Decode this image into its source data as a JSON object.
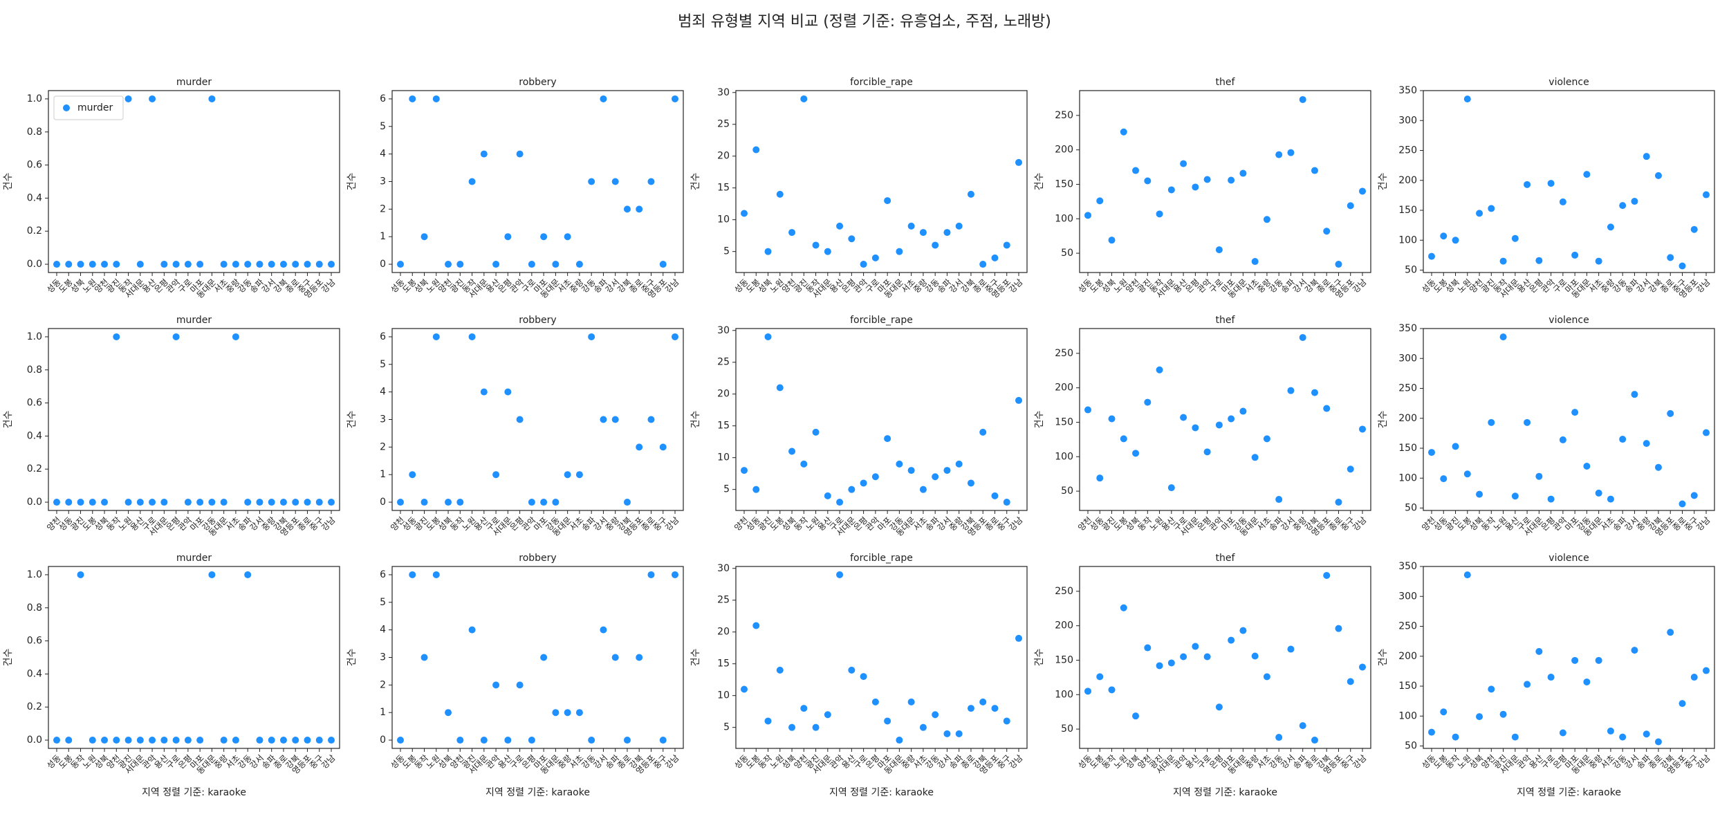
{
  "title": "범죄 유형별 지역 비교 (정렬 기준: 유흥업소, 주점, 노래방)",
  "chart_data": [
    {
      "type": "scatter",
      "title": "murder",
      "ylabel": "건수",
      "legend": "upper left",
      "categories": [
        "성동",
        "도봉",
        "성북",
        "노원",
        "양천",
        "광진",
        "동작",
        "서대문",
        "용산",
        "은평",
        "관악",
        "구로",
        "마포",
        "동대문",
        "서초",
        "중랑",
        "강동",
        "송파",
        "강서",
        "강북",
        "종로",
        "중구",
        "영등포",
        "강남"
      ],
      "series": [
        {
          "name": "murder",
          "color": "#1e90ff",
          "values": [
            0,
            0,
            0,
            0,
            0,
            0,
            1,
            0,
            1,
            0,
            0,
            0,
            0,
            1,
            0,
            0,
            0,
            0,
            0,
            0,
            0,
            0,
            0,
            0
          ]
        }
      ],
      "ylim": [
        -0.05,
        1.05
      ],
      "yticks": [
        {
          "value": 0,
          "label": "0.0"
        },
        0.2,
        0.4,
        0.6,
        0.8,
        {
          "value": 1,
          "label": "1.0"
        }
      ]
    },
    {
      "type": "scatter",
      "title": "robbery",
      "ylabel": "건수",
      "color": "#1e90ff",
      "categories": [
        "성동",
        "도봉",
        "성북",
        "노원",
        "양천",
        "광진",
        "동작",
        "서대문",
        "용산",
        "은평",
        "관악",
        "구로",
        "마포",
        "동대문",
        "서초",
        "중랑",
        "강동",
        "송파",
        "강서",
        "강북",
        "종로",
        "중구",
        "영등포",
        "강남"
      ],
      "values": [
        0,
        6,
        1,
        6,
        0,
        0,
        3,
        4,
        0,
        1,
        4,
        0,
        1,
        0,
        1,
        0,
        3,
        6,
        3,
        2,
        2,
        3,
        0,
        6
      ],
      "ylim": [
        -0.3,
        6.3
      ],
      "yticks": [
        0,
        1,
        2,
        3,
        4,
        5,
        6
      ]
    },
    {
      "type": "scatter",
      "title": "forcible_rape",
      "ylabel": "건수",
      "color": "#1e90ff",
      "categories": [
        "성동",
        "도봉",
        "성북",
        "노원",
        "양천",
        "광진",
        "동작",
        "서대문",
        "용산",
        "은평",
        "관악",
        "구로",
        "마포",
        "동대문",
        "서초",
        "중랑",
        "강동",
        "송파",
        "강서",
        "강북",
        "종로",
        "중구",
        "영등포",
        "강남"
      ],
      "values": [
        11,
        21,
        5,
        14,
        8,
        29,
        6,
        5,
        9,
        7,
        3,
        4,
        13,
        5,
        9,
        8,
        6,
        8,
        9,
        14,
        3,
        4,
        6,
        19
      ],
      "ylim": [
        1.7,
        30.3
      ],
      "yticks": [
        5,
        10,
        15,
        20,
        25,
        30
      ]
    },
    {
      "type": "scatter",
      "title": "thef",
      "ylabel": "건수",
      "color": "#1e90ff",
      "categories": [
        "성동",
        "도봉",
        "성북",
        "노원",
        "양천",
        "광진",
        "동작",
        "서대문",
        "용산",
        "은평",
        "관악",
        "구로",
        "마포",
        "동대문",
        "서초",
        "중랑",
        "강동",
        "송파",
        "강서",
        "강북",
        "종로",
        "중구",
        "영등포",
        "강남"
      ],
      "values": [
        105,
        126,
        69,
        226,
        170,
        155,
        107,
        142,
        180,
        146,
        157,
        55,
        156,
        166,
        38,
        99,
        193,
        196,
        273,
        170,
        82,
        34,
        119,
        140
      ],
      "ylim": [
        22,
        286
      ],
      "yticks": [
        50,
        100,
        150,
        200,
        250
      ]
    },
    {
      "type": "scatter",
      "title": "violence",
      "ylabel": "건수",
      "color": "#1e90ff",
      "categories": [
        "성동",
        "도봉",
        "성북",
        "노원",
        "양천",
        "광진",
        "동작",
        "서대문",
        "용산",
        "은평",
        "관악",
        "구로",
        "마포",
        "동대문",
        "서초",
        "중랑",
        "강동",
        "송파",
        "강서",
        "강북",
        "종로",
        "중구",
        "영등포",
        "강남"
      ],
      "values": [
        73,
        107,
        100,
        336,
        145,
        153,
        65,
        103,
        193,
        66,
        195,
        164,
        75,
        210,
        65,
        122,
        158,
        165,
        240,
        208,
        71,
        57,
        118,
        176
      ],
      "ylim": [
        46,
        350
      ],
      "yticks": [
        50,
        100,
        150,
        200,
        250,
        300,
        350
      ]
    },
    {
      "type": "scatter",
      "title": "murder",
      "ylabel": "건수",
      "color": "#1e90ff",
      "categories": [
        "양천",
        "성동",
        "광진",
        "도봉",
        "성북",
        "동작",
        "노원",
        "용산",
        "구로",
        "서대문",
        "은평",
        "관악",
        "마포",
        "강동",
        "동대문",
        "서초",
        "송파",
        "강서",
        "중랑",
        "강북",
        "영등포",
        "종로",
        "중구",
        "강남"
      ],
      "values": [
        0,
        0,
        0,
        0,
        0,
        1,
        0,
        0,
        0,
        0,
        1,
        0,
        0,
        0,
        0,
        1,
        0,
        0,
        0,
        0,
        0,
        0,
        0,
        0
      ],
      "ylim": [
        -0.05,
        1.05
      ],
      "yticks": [
        {
          "value": 0,
          "label": "0.0"
        },
        0.2,
        0.4,
        0.6,
        0.8,
        {
          "value": 1,
          "label": "1.0"
        }
      ]
    },
    {
      "type": "scatter",
      "title": "robbery",
      "ylabel": "건수",
      "color": "#1e90ff",
      "categories": [
        "양천",
        "성동",
        "광진",
        "도봉",
        "성북",
        "동작",
        "노원",
        "용산",
        "구로",
        "서대문",
        "은평",
        "관악",
        "마포",
        "강동",
        "동대문",
        "서초",
        "송파",
        "강서",
        "중랑",
        "강북",
        "영등포",
        "종로",
        "중구",
        "강남"
      ],
      "values": [
        0,
        1,
        0,
        6,
        0,
        0,
        6,
        4,
        1,
        4,
        3,
        0,
        0,
        0,
        1,
        1,
        6,
        3,
        3,
        0,
        2,
        3,
        2,
        6
      ],
      "ylim": [
        -0.3,
        6.3
      ],
      "yticks": [
        0,
        1,
        2,
        3,
        4,
        5,
        6
      ]
    },
    {
      "type": "scatter",
      "title": "forcible_rape",
      "ylabel": "건수",
      "color": "#1e90ff",
      "categories": [
        "양천",
        "성동",
        "광진",
        "도봉",
        "성북",
        "동작",
        "노원",
        "용산",
        "구로",
        "서대문",
        "은평",
        "관악",
        "마포",
        "강동",
        "동대문",
        "서초",
        "송파",
        "강서",
        "중랑",
        "강북",
        "영등포",
        "종로",
        "중구",
        "강남"
      ],
      "values": [
        8,
        5,
        29,
        21,
        11,
        9,
        14,
        4,
        3,
        5,
        6,
        7,
        13,
        9,
        8,
        5,
        7,
        8,
        9,
        6,
        14,
        4,
        3,
        19
      ],
      "ylim": [
        1.7,
        30.3
      ],
      "yticks": [
        5,
        10,
        15,
        20,
        25,
        30
      ]
    },
    {
      "type": "scatter",
      "title": "thef",
      "ylabel": "건수",
      "color": "#1e90ff",
      "categories": [
        "양천",
        "성동",
        "광진",
        "도봉",
        "성북",
        "동작",
        "노원",
        "용산",
        "구로",
        "서대문",
        "은평",
        "관악",
        "마포",
        "강동",
        "동대문",
        "서초",
        "송파",
        "강서",
        "중랑",
        "강북",
        "영등포",
        "종로",
        "중구",
        "강남"
      ],
      "values": [
        168,
        69,
        155,
        126,
        105,
        179,
        226,
        55,
        157,
        142,
        107,
        146,
        155,
        166,
        99,
        126,
        38,
        196,
        273,
        193,
        170,
        34,
        82,
        140
      ],
      "ylim": [
        22,
        286
      ],
      "yticks": [
        50,
        100,
        150,
        200,
        250
      ]
    },
    {
      "type": "scatter",
      "title": "violence",
      "ylabel": "건수",
      "color": "#1e90ff",
      "categories": [
        "양천",
        "성동",
        "광진",
        "도봉",
        "성북",
        "동작",
        "노원",
        "용산",
        "구로",
        "서대문",
        "은평",
        "관악",
        "마포",
        "강동",
        "동대문",
        "서초",
        "송파",
        "강서",
        "중랑",
        "강북",
        "영등포",
        "종로",
        "중구",
        "강남"
      ],
      "values": [
        143,
        99,
        153,
        107,
        73,
        193,
        336,
        70,
        193,
        103,
        65,
        164,
        210,
        120,
        75,
        65,
        165,
        240,
        158,
        118,
        208,
        57,
        71,
        176
      ],
      "ylim": [
        46,
        350
      ],
      "yticks": [
        50,
        100,
        150,
        200,
        250,
        300,
        350
      ]
    },
    {
      "type": "scatter",
      "title": "murder",
      "ylabel": "건수",
      "xlabel": "지역 정렬 기준: karaoke",
      "color": "#1e90ff",
      "categories": [
        "성동",
        "도봉",
        "동작",
        "노원",
        "성북",
        "양천",
        "광진",
        "서대문",
        "관악",
        "용산",
        "구로",
        "은평",
        "마포",
        "동대문",
        "중랑",
        "서초",
        "강동",
        "강서",
        "송파",
        "종로",
        "강북",
        "영등포",
        "중구",
        "강남"
      ],
      "values": [
        0,
        0,
        1,
        0,
        0,
        0,
        0,
        0,
        0,
        0,
        0,
        0,
        0,
        1,
        0,
        0,
        1,
        0,
        0,
        0,
        0,
        0,
        0,
        0
      ],
      "ylim": [
        -0.05,
        1.05
      ],
      "yticks": [
        {
          "value": 0,
          "label": "0.0"
        },
        0.2,
        0.4,
        0.6,
        0.8,
        {
          "value": 1,
          "label": "1.0"
        }
      ]
    },
    {
      "type": "scatter",
      "title": "robbery",
      "ylabel": "건수",
      "xlabel": "지역 정렬 기준: karaoke",
      "color": "#1e90ff",
      "categories": [
        "성동",
        "도봉",
        "동작",
        "노원",
        "성북",
        "양천",
        "광진",
        "서대문",
        "관악",
        "용산",
        "구로",
        "은평",
        "마포",
        "동대문",
        "중랑",
        "서초",
        "강동",
        "강서",
        "송파",
        "종로",
        "강북",
        "영등포",
        "중구",
        "강남"
      ],
      "values": [
        0,
        6,
        3,
        6,
        1,
        0,
        4,
        0,
        2,
        0,
        2,
        0,
        3,
        1,
        1,
        1,
        0,
        4,
        3,
        0,
        3,
        6,
        0,
        6
      ],
      "ylim": [
        -0.3,
        6.3
      ],
      "yticks": [
        0,
        1,
        2,
        3,
        4,
        5,
        6
      ]
    },
    {
      "type": "scatter",
      "title": "forcible_rape",
      "ylabel": "건수",
      "xlabel": "지역 정렬 기준: karaoke",
      "color": "#1e90ff",
      "categories": [
        "성동",
        "도봉",
        "동작",
        "노원",
        "성북",
        "양천",
        "광진",
        "서대문",
        "관악",
        "용산",
        "구로",
        "은평",
        "마포",
        "동대문",
        "중랑",
        "서초",
        "강동",
        "강서",
        "송파",
        "종로",
        "강북",
        "영등포",
        "중구",
        "강남"
      ],
      "values": [
        11,
        21,
        6,
        14,
        5,
        8,
        5,
        7,
        29,
        14,
        13,
        9,
        6,
        3,
        9,
        5,
        7,
        4,
        4,
        8,
        9,
        8,
        6,
        19
      ],
      "ylim": [
        1.7,
        30.3
      ],
      "yticks": [
        5,
        10,
        15,
        20,
        25,
        30
      ]
    },
    {
      "type": "scatter",
      "title": "thef",
      "ylabel": "건수",
      "xlabel": "지역 정렬 기준: karaoke",
      "color": "#1e90ff",
      "categories": [
        "성동",
        "도봉",
        "동작",
        "노원",
        "성북",
        "양천",
        "광진",
        "서대문",
        "관악",
        "용산",
        "구로",
        "은평",
        "마포",
        "동대문",
        "중랑",
        "서초",
        "강동",
        "강서",
        "송파",
        "종로",
        "강북",
        "영등포",
        "중구",
        "강남"
      ],
      "values": [
        105,
        126,
        107,
        226,
        69,
        168,
        142,
        146,
        155,
        170,
        155,
        82,
        179,
        193,
        156,
        126,
        38,
        166,
        55,
        34,
        273,
        196,
        119,
        140
      ],
      "ylim": [
        22,
        286
      ],
      "yticks": [
        50,
        100,
        150,
        200,
        250
      ]
    },
    {
      "type": "scatter",
      "title": "violence",
      "ylabel": "건수",
      "xlabel": "지역 정렬 기준: karaoke",
      "color": "#1e90ff",
      "categories": [
        "성동",
        "도봉",
        "동작",
        "노원",
        "성북",
        "양천",
        "광진",
        "서대문",
        "관악",
        "용산",
        "구로",
        "은평",
        "마포",
        "동대문",
        "중랑",
        "서초",
        "강동",
        "강서",
        "송파",
        "종로",
        "강북",
        "영등포",
        "중구",
        "강남"
      ],
      "values": [
        73,
        107,
        65,
        336,
        99,
        145,
        103,
        65,
        153,
        208,
        165,
        72,
        193,
        157,
        193,
        75,
        65,
        210,
        70,
        57,
        240,
        121,
        165,
        176
      ],
      "ylim": [
        46,
        350
      ],
      "yticks": [
        50,
        100,
        150,
        200,
        250,
        300,
        350
      ]
    }
  ]
}
